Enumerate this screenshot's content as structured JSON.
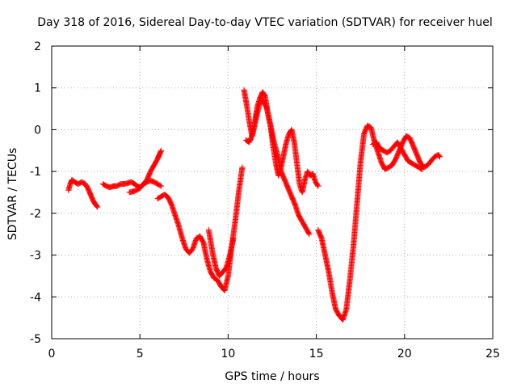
{
  "chart_data": {
    "type": "scatter",
    "title": "Day 318 of 2016, Sidereal Day-to-day VTEC variation (SDTVAR) for receiver huel",
    "xlabel": "GPS time / hours",
    "ylabel": "SDTVAR / TECUs",
    "xlim": [
      0,
      25
    ],
    "ylim": [
      -5,
      2
    ],
    "xticks": [
      0,
      5,
      10,
      15,
      20,
      25
    ],
    "yticks": [
      -5,
      -4,
      -3,
      -2,
      -1,
      0,
      1,
      2
    ],
    "grid": true,
    "marker": "+",
    "color": "#ff0000",
    "segments": [
      {
        "x": [
          0.95,
          1.05,
          1.15,
          1.3,
          1.5,
          1.7,
          1.9,
          2.05,
          2.2,
          2.35,
          2.5,
          2.6
        ],
        "y": [
          -1.45,
          -1.3,
          -1.2,
          -1.25,
          -1.3,
          -1.25,
          -1.3,
          -1.4,
          -1.55,
          -1.7,
          -1.8,
          -1.85
        ]
      },
      {
        "x": [
          2.9,
          3.1,
          3.3,
          3.5,
          3.7,
          3.9,
          4.1,
          4.3,
          4.5,
          4.7,
          4.85,
          5.0,
          5.2,
          5.4,
          5.6,
          5.8,
          6.0,
          6.1,
          6.2
        ],
        "y": [
          -1.3,
          -1.35,
          -1.38,
          -1.35,
          -1.35,
          -1.3,
          -1.3,
          -1.28,
          -1.25,
          -1.3,
          -1.35,
          -1.38,
          -1.3,
          -1.2,
          -1.0,
          -0.85,
          -0.7,
          -0.6,
          -0.5
        ]
      },
      {
        "x": [
          4.4,
          4.6,
          4.8,
          5.0,
          5.2,
          5.4,
          5.6,
          5.8,
          6.0,
          6.2
        ],
        "y": [
          -1.5,
          -1.48,
          -1.45,
          -1.4,
          -1.3,
          -1.25,
          -1.22,
          -1.25,
          -1.3,
          -1.35
        ]
      },
      {
        "x": [
          6.0,
          6.2,
          6.4,
          6.6,
          6.8,
          7.0,
          7.2,
          7.4,
          7.6,
          7.8,
          8.0,
          8.2,
          8.4,
          8.6,
          8.8,
          9.0,
          9.2,
          9.4,
          9.6,
          9.8,
          10.0,
          10.2,
          10.4,
          10.6,
          10.8
        ],
        "y": [
          -1.65,
          -1.6,
          -1.55,
          -1.62,
          -1.8,
          -2.05,
          -2.3,
          -2.6,
          -2.85,
          -2.95,
          -2.85,
          -2.6,
          -2.55,
          -2.7,
          -3.1,
          -3.4,
          -3.55,
          -3.6,
          -3.75,
          -3.85,
          -3.5,
          -2.8,
          -2.2,
          -1.5,
          -0.9
        ]
      },
      {
        "x": [
          8.9,
          9.1,
          9.3,
          9.5,
          9.7,
          9.9,
          10.1,
          10.3
        ],
        "y": [
          -2.4,
          -2.9,
          -3.3,
          -3.5,
          -3.4,
          -3.3,
          -3.0,
          -2.6
        ]
      },
      {
        "x": [
          10.9,
          11.05,
          11.2,
          11.35,
          11.5,
          11.65,
          11.8,
          11.95,
          12.1,
          12.25,
          12.4,
          12.55,
          12.7,
          12.85,
          13.0,
          13.15,
          13.3,
          13.45,
          13.6,
          13.75,
          13.9,
          14.05,
          14.2,
          14.35,
          14.5,
          14.65,
          14.8,
          14.95,
          15.1
        ],
        "y": [
          0.95,
          0.6,
          0.2,
          -0.15,
          0.15,
          0.55,
          0.75,
          0.9,
          0.8,
          0.4,
          0.1,
          -0.4,
          -0.8,
          -1.1,
          -0.9,
          -0.6,
          -0.3,
          -0.1,
          0.0,
          -0.3,
          -0.8,
          -1.3,
          -1.5,
          -1.2,
          -1.0,
          -1.1,
          -1.05,
          -1.25,
          -1.35
        ]
      },
      {
        "x": [
          11.0,
          11.2,
          11.4,
          11.6,
          11.8,
          12.0,
          12.2,
          12.4,
          12.6,
          12.8,
          13.0,
          13.2,
          13.4,
          13.6,
          13.8,
          14.0,
          14.2,
          14.4,
          14.6
        ],
        "y": [
          -0.25,
          -0.3,
          -0.1,
          0.3,
          0.65,
          0.7,
          0.5,
          0.1,
          -0.3,
          -0.6,
          -1.0,
          -1.2,
          -1.4,
          -1.6,
          -1.8,
          -2.05,
          -2.2,
          -2.35,
          -2.5
        ]
      },
      {
        "x": [
          15.1,
          15.3,
          15.5,
          15.7,
          15.9,
          16.1,
          16.3,
          16.5,
          16.7,
          16.9,
          17.1,
          17.3,
          17.5,
          17.7,
          17.9,
          18.1,
          18.3,
          18.5,
          18.7,
          18.9,
          19.1,
          19.3,
          19.5,
          19.7,
          19.9,
          20.1,
          20.3,
          20.5,
          20.7,
          20.9,
          21.1,
          21.3,
          21.5,
          21.7,
          21.9,
          22.0
        ],
        "y": [
          -2.4,
          -2.6,
          -3.0,
          -3.4,
          -3.9,
          -4.3,
          -4.45,
          -4.55,
          -4.3,
          -3.6,
          -2.8,
          -1.8,
          -0.8,
          -0.1,
          0.1,
          0.05,
          -0.3,
          -0.55,
          -0.8,
          -0.95,
          -0.9,
          -0.85,
          -0.7,
          -0.5,
          -0.3,
          -0.15,
          -0.2,
          -0.4,
          -0.6,
          -0.8,
          -0.9,
          -0.85,
          -0.75,
          -0.65,
          -0.6,
          -0.65
        ]
      },
      {
        "x": [
          18.2,
          18.4,
          18.6,
          18.8,
          19.0,
          19.2,
          19.4,
          19.6,
          19.8,
          20.0,
          20.2,
          20.4,
          20.6,
          20.8,
          21.0
        ],
        "y": [
          -0.35,
          -0.3,
          -0.45,
          -0.5,
          -0.55,
          -0.5,
          -0.4,
          -0.3,
          -0.45,
          -0.6,
          -0.75,
          -0.8,
          -0.85,
          -0.9,
          -0.95
        ]
      }
    ]
  }
}
